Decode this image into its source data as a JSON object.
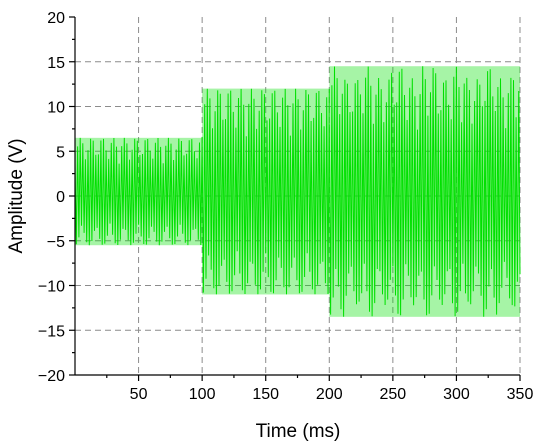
{
  "chart_data": {
    "type": "line",
    "xlabel": "Time (ms)",
    "ylabel": "Amplitude (V)",
    "xlim": [
      0,
      350
    ],
    "ylim": [
      -20,
      20
    ],
    "x_ticks": [
      50,
      100,
      150,
      200,
      250,
      300,
      350
    ],
    "y_ticks": [
      -20,
      -15,
      -10,
      -5,
      0,
      5,
      10,
      15,
      20
    ],
    "x_tick_labels": [
      "50",
      "100",
      "150",
      "200",
      "250",
      "300",
      "350"
    ],
    "y_tick_labels": [
      "−20",
      "−15",
      "−10",
      "−5",
      "0",
      "5",
      "10",
      "15",
      "20"
    ],
    "grid": true,
    "series": [
      {
        "color": "#00e000",
        "envelope_segments": [
          {
            "x_start": 0,
            "x_end": 100,
            "y_max": 6.5,
            "y_min": -5.5
          },
          {
            "x_start": 100,
            "x_end": 200,
            "y_max": 12,
            "y_min": -11
          },
          {
            "x_start": 200,
            "x_end": 350,
            "y_max": 14.5,
            "y_min": -13.5,
            "y_max_alt": 13.2,
            "y_min_alt": -12.2
          }
        ]
      }
    ]
  }
}
